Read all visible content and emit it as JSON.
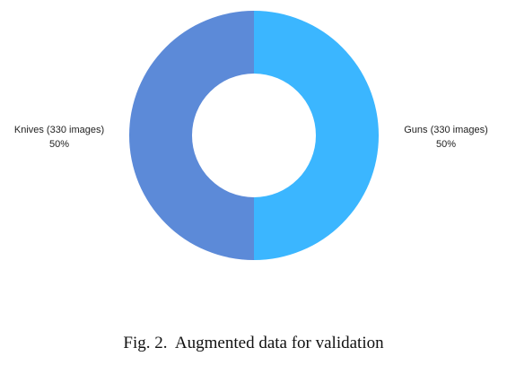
{
  "chart_data": {
    "type": "pie",
    "variant": "donut",
    "title": "",
    "slices": [
      {
        "label": "Guns (330 images)",
        "value": 330,
        "percent_label": "50%",
        "color": "#3bb6ff"
      },
      {
        "label": "Knives (330 images)",
        "value": 330,
        "percent_label": "50%",
        "color": "#5c8ad8"
      }
    ],
    "legend": "none"
  },
  "caption": {
    "text": "Fig. 2.  Augmented data for validation"
  }
}
